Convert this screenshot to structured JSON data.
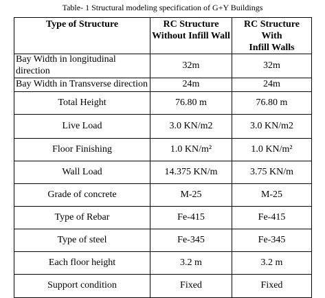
{
  "caption": "Table- 1 Structural modeling specification of G+Y Buildings",
  "table": {
    "header": [
      "Type of Structure",
      "RC Structure\nWithout Infill Wall",
      "RC Structure With\nInfill Walls"
    ],
    "rows": [
      [
        "Bay  Width in longitudinal direction",
        "32m",
        "32m"
      ],
      [
        "Bay  Width in Transverse direction",
        "24m",
        "24m"
      ],
      [
        "Total Height",
        "76.80 m",
        "76.80 m"
      ],
      [
        "Live Load",
        "3.0 KN/m2",
        "3.0 KN/m2"
      ],
      [
        "Floor Finishing",
        "1.0 KN/m²",
        "1.0 KN/m²"
      ],
      [
        "Wall Load",
        "14.375 KN/m",
        "3.75 KN/m"
      ],
      [
        "Grade of concrete",
        "M-25",
        "M-25"
      ],
      [
        "Type of Rebar",
        "Fe-415",
        "Fe-415"
      ],
      [
        "Type of steel",
        "Fe-345",
        "Fe-345"
      ],
      [
        "Each floor height",
        "3.2 m",
        "3.2 m"
      ],
      [
        "Support condition",
        "Fixed",
        "Fixed"
      ]
    ]
  }
}
